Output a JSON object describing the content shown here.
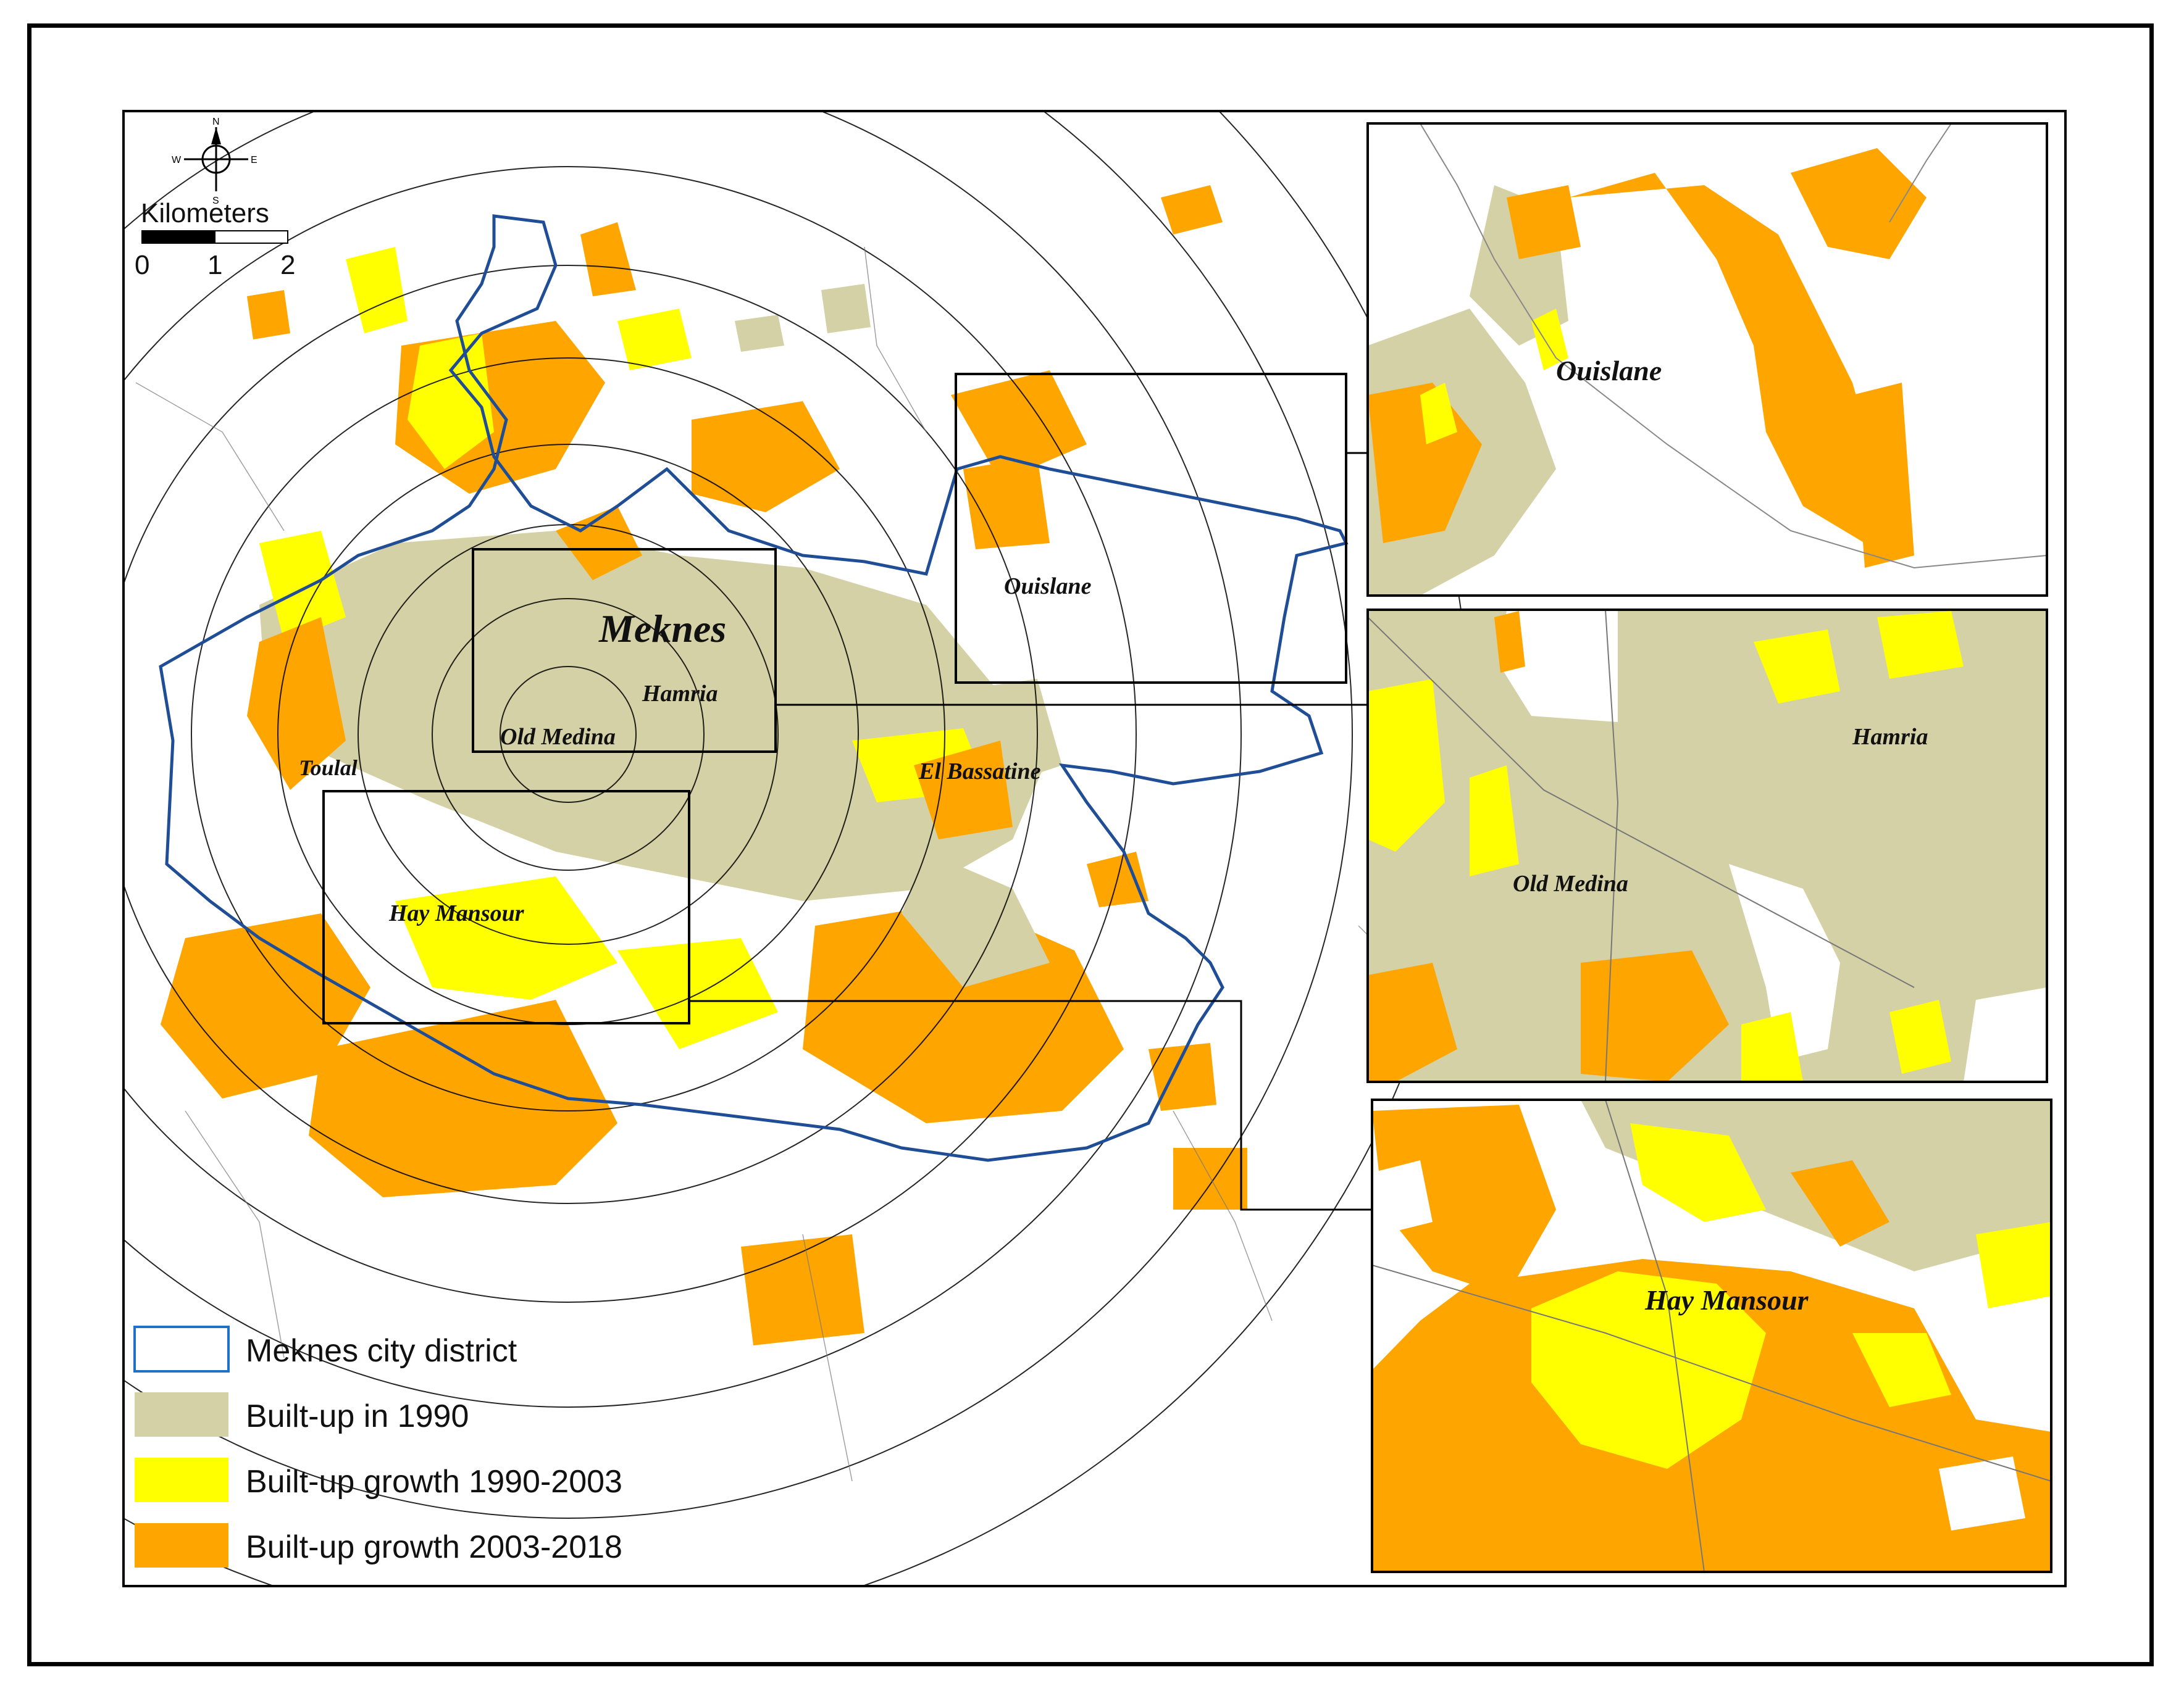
{
  "colors": {
    "built_1990": "#d4d1a6",
    "growth_1990_2003": "#ffff00",
    "growth_2003_2018": "#ffa500",
    "district_outline": "#1f4e96",
    "frame": "#000000"
  },
  "north_arrow": {
    "n": "N",
    "s": "S",
    "e": "E",
    "w": "W"
  },
  "scale_bar": {
    "title": "Kilometers",
    "labels": [
      "0",
      "1",
      "2"
    ]
  },
  "main_map": {
    "labels": {
      "meknes": "Meknes",
      "hamria": "Hamria",
      "old_medina": "Old Medina",
      "toulal": "Toulal",
      "el_bassatine": "El Bassatine",
      "hay_mansour": "Hay Mansour",
      "ouislane": "Ouislane"
    }
  },
  "insets": {
    "ouislane": {
      "label": "Ouislane"
    },
    "center": {
      "label_hamria": "Hamria",
      "label_old_medina": "Old Medina"
    },
    "hay_mansour": {
      "label": "Hay Mansour"
    }
  },
  "legend": {
    "items": [
      {
        "label": "Meknes city district",
        "icon": "outline-swatch"
      },
      {
        "label": "Built-up in 1990",
        "icon": "khaki-swatch"
      },
      {
        "label": "Built-up growth 1990-2003",
        "icon": "yellow-swatch"
      },
      {
        "label": "Built-up growth 2003-2018",
        "icon": "orange-swatch"
      }
    ]
  }
}
